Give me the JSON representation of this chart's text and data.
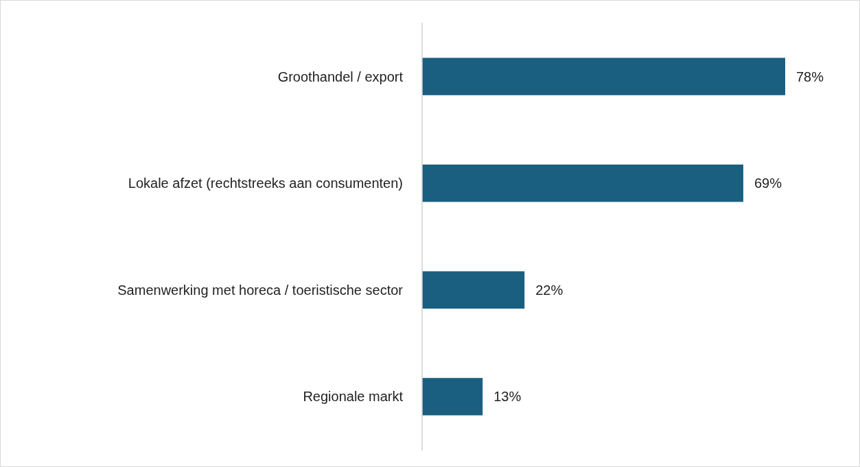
{
  "chart_data": {
    "type": "bar",
    "orientation": "horizontal",
    "categories": [
      "Groothandel / export",
      "Lokale afzet (rechtstreeks aan consumenten)",
      "Samenwerking met horeca / toeristische sector",
      "Regionale markt"
    ],
    "values": [
      78,
      69,
      22,
      13
    ],
    "value_labels": [
      "78%",
      "69%",
      "22%",
      "13%"
    ],
    "color": "#1a5f80"
  }
}
